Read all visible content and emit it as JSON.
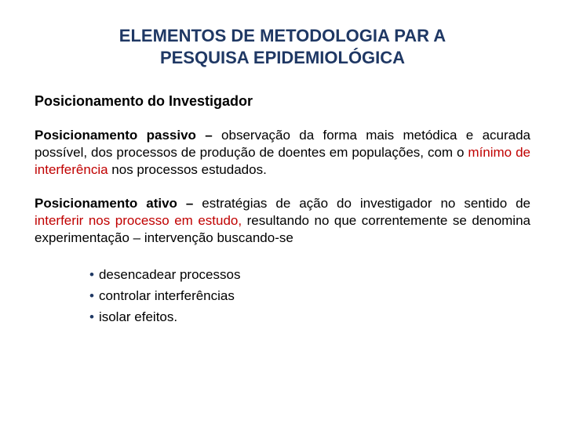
{
  "colors": {
    "title": "#1f3864",
    "body": "#000000",
    "accent": "#c00000",
    "bullet_dot": "#1f3864"
  },
  "title": {
    "line1": "ELEMENTOS DE METODOLOGIA PAR A",
    "line2": "PESQUISA EPIDEMIOLÓGICA"
  },
  "subtitle": "Posicionamento do Investigador",
  "p1": {
    "lead": "Posicionamento passivo –",
    "t1": " observação da forma mais metódica e acurada possível, dos processos de produção de doentes em populações, com o ",
    "accent": "mínimo de interferência",
    "t2": " nos processos estudados."
  },
  "p2": {
    "lead": "Posicionamento  ativo –",
    "t1": " estratégias de ação do investigador no sentido de ",
    "accent": "interferir nos processo em estudo,",
    "t2": " resultando no que correntemente se denomina experimentação – intervenção buscando-se"
  },
  "bullets": {
    "b1": "desencadear processos",
    "b2": "controlar interferências",
    "b3": "isolar efeitos."
  }
}
